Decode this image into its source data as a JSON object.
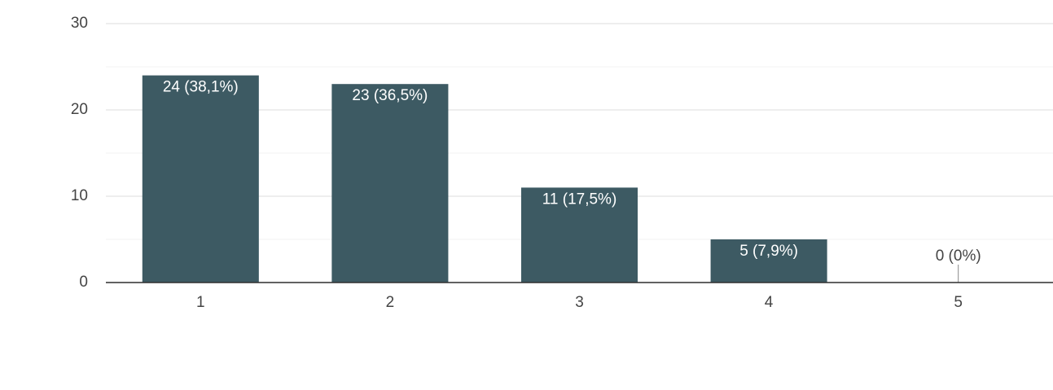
{
  "chart_data": {
    "type": "bar",
    "categories": [
      "1",
      "2",
      "3",
      "4",
      "5"
    ],
    "values": [
      24,
      23,
      11,
      5,
      0
    ],
    "value_labels": [
      "24 (38,1%)",
      "23 (36,5%)",
      "11 (17,5%)",
      "5 (7,9%)",
      "0 (0%)"
    ],
    "color": "#3d5a63",
    "ylim": [
      0,
      30
    ],
    "yticks": [
      0,
      10,
      20,
      30
    ],
    "grid": true
  }
}
